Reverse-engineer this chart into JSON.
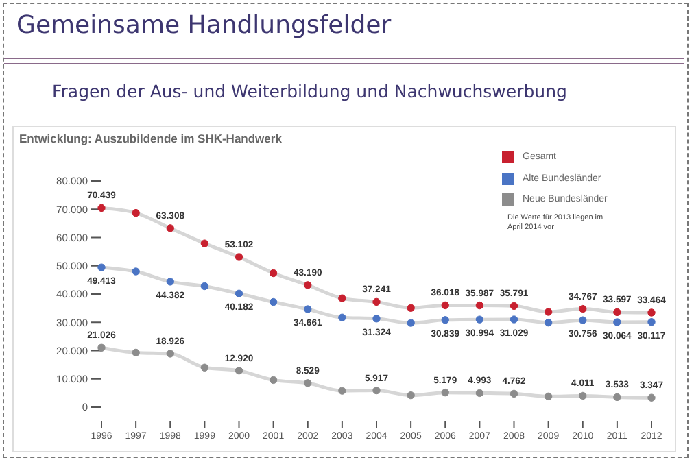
{
  "chart_data": {
    "type": "line",
    "title": "Gemeinsame Handlungsfelder",
    "subtitle": "Fragen der Aus- und Weiterbildung und Nachwuchswerbung",
    "annotations": [
      "Entwicklung: Auszubildende im SHK-Handwerk",
      "Die Werte für 2013 liegen im April 2014 vor"
    ],
    "x": [
      1996,
      1997,
      1998,
      1999,
      2000,
      2001,
      2002,
      2003,
      2004,
      2005,
      2006,
      2007,
      2008,
      2009,
      2010,
      2011,
      2012
    ],
    "xlim": [
      1996,
      2012
    ],
    "xticks": [
      1996,
      1997,
      1998,
      1999,
      2000,
      2001,
      2002,
      2003,
      2004,
      2005,
      2006,
      2007,
      2008,
      2009,
      2010,
      2011,
      2012
    ],
    "ylim": [
      0,
      80000
    ],
    "yticks": [
      {
        "value": 0,
        "label": "0"
      },
      {
        "value": 10000,
        "label": "10.000"
      },
      {
        "value": 20000,
        "label": "20.000"
      },
      {
        "value": 30000,
        "label": "30.000"
      },
      {
        "value": 40000,
        "label": "40.000"
      },
      {
        "value": 50000,
        "label": "50.000"
      },
      {
        "value": 60000,
        "label": "60.000"
      },
      {
        "value": 70000,
        "label": "70.000"
      },
      {
        "value": 80000,
        "label": "80.000"
      }
    ],
    "grid": false,
    "legend": "top right",
    "marker": "circle",
    "line_style": "solid",
    "series": [
      {
        "name": "Gesamt",
        "color": "#c8202f",
        "values": [
          70439,
          68700,
          63308,
          57900,
          53102,
          47400,
          43190,
          38500,
          37241,
          35100,
          36018,
          35987,
          35791,
          33700,
          34767,
          33597,
          33464
        ],
        "value_labels": [
          "70.439",
          null,
          "63.308",
          null,
          "53.102",
          null,
          "43.190",
          null,
          "37.241",
          null,
          "36.018",
          "35.987",
          "35.791",
          null,
          "34.767",
          "33.597",
          "33.464"
        ]
      },
      {
        "name": "Alte Bundesländer",
        "color": "#4a74c4",
        "values": [
          49413,
          48000,
          44382,
          42800,
          40182,
          37200,
          34661,
          31700,
          31324,
          29800,
          30839,
          30994,
          31029,
          29900,
          30756,
          30064,
          30117
        ],
        "value_labels": [
          "49.413",
          null,
          "44.382",
          null,
          "40.182",
          null,
          "34.661",
          null,
          "31.324",
          null,
          "30.839",
          "30.994",
          "31.029",
          null,
          "30.756",
          "30.064",
          "30.117"
        ]
      },
      {
        "name": "Neue Bundesländer",
        "color": "#8c8c8c",
        "values": [
          21026,
          19300,
          18926,
          14000,
          12920,
          9600,
          8529,
          5800,
          5917,
          4200,
          5179,
          4993,
          4762,
          3800,
          4011,
          3533,
          3347
        ],
        "value_labels": [
          "21.026",
          null,
          "18.926",
          null,
          "12.920",
          null,
          "8.529",
          null,
          "5.917",
          null,
          "5.179",
          "4.993",
          "4.762",
          null,
          "4.011",
          "3.533",
          "3.347"
        ]
      }
    ]
  }
}
